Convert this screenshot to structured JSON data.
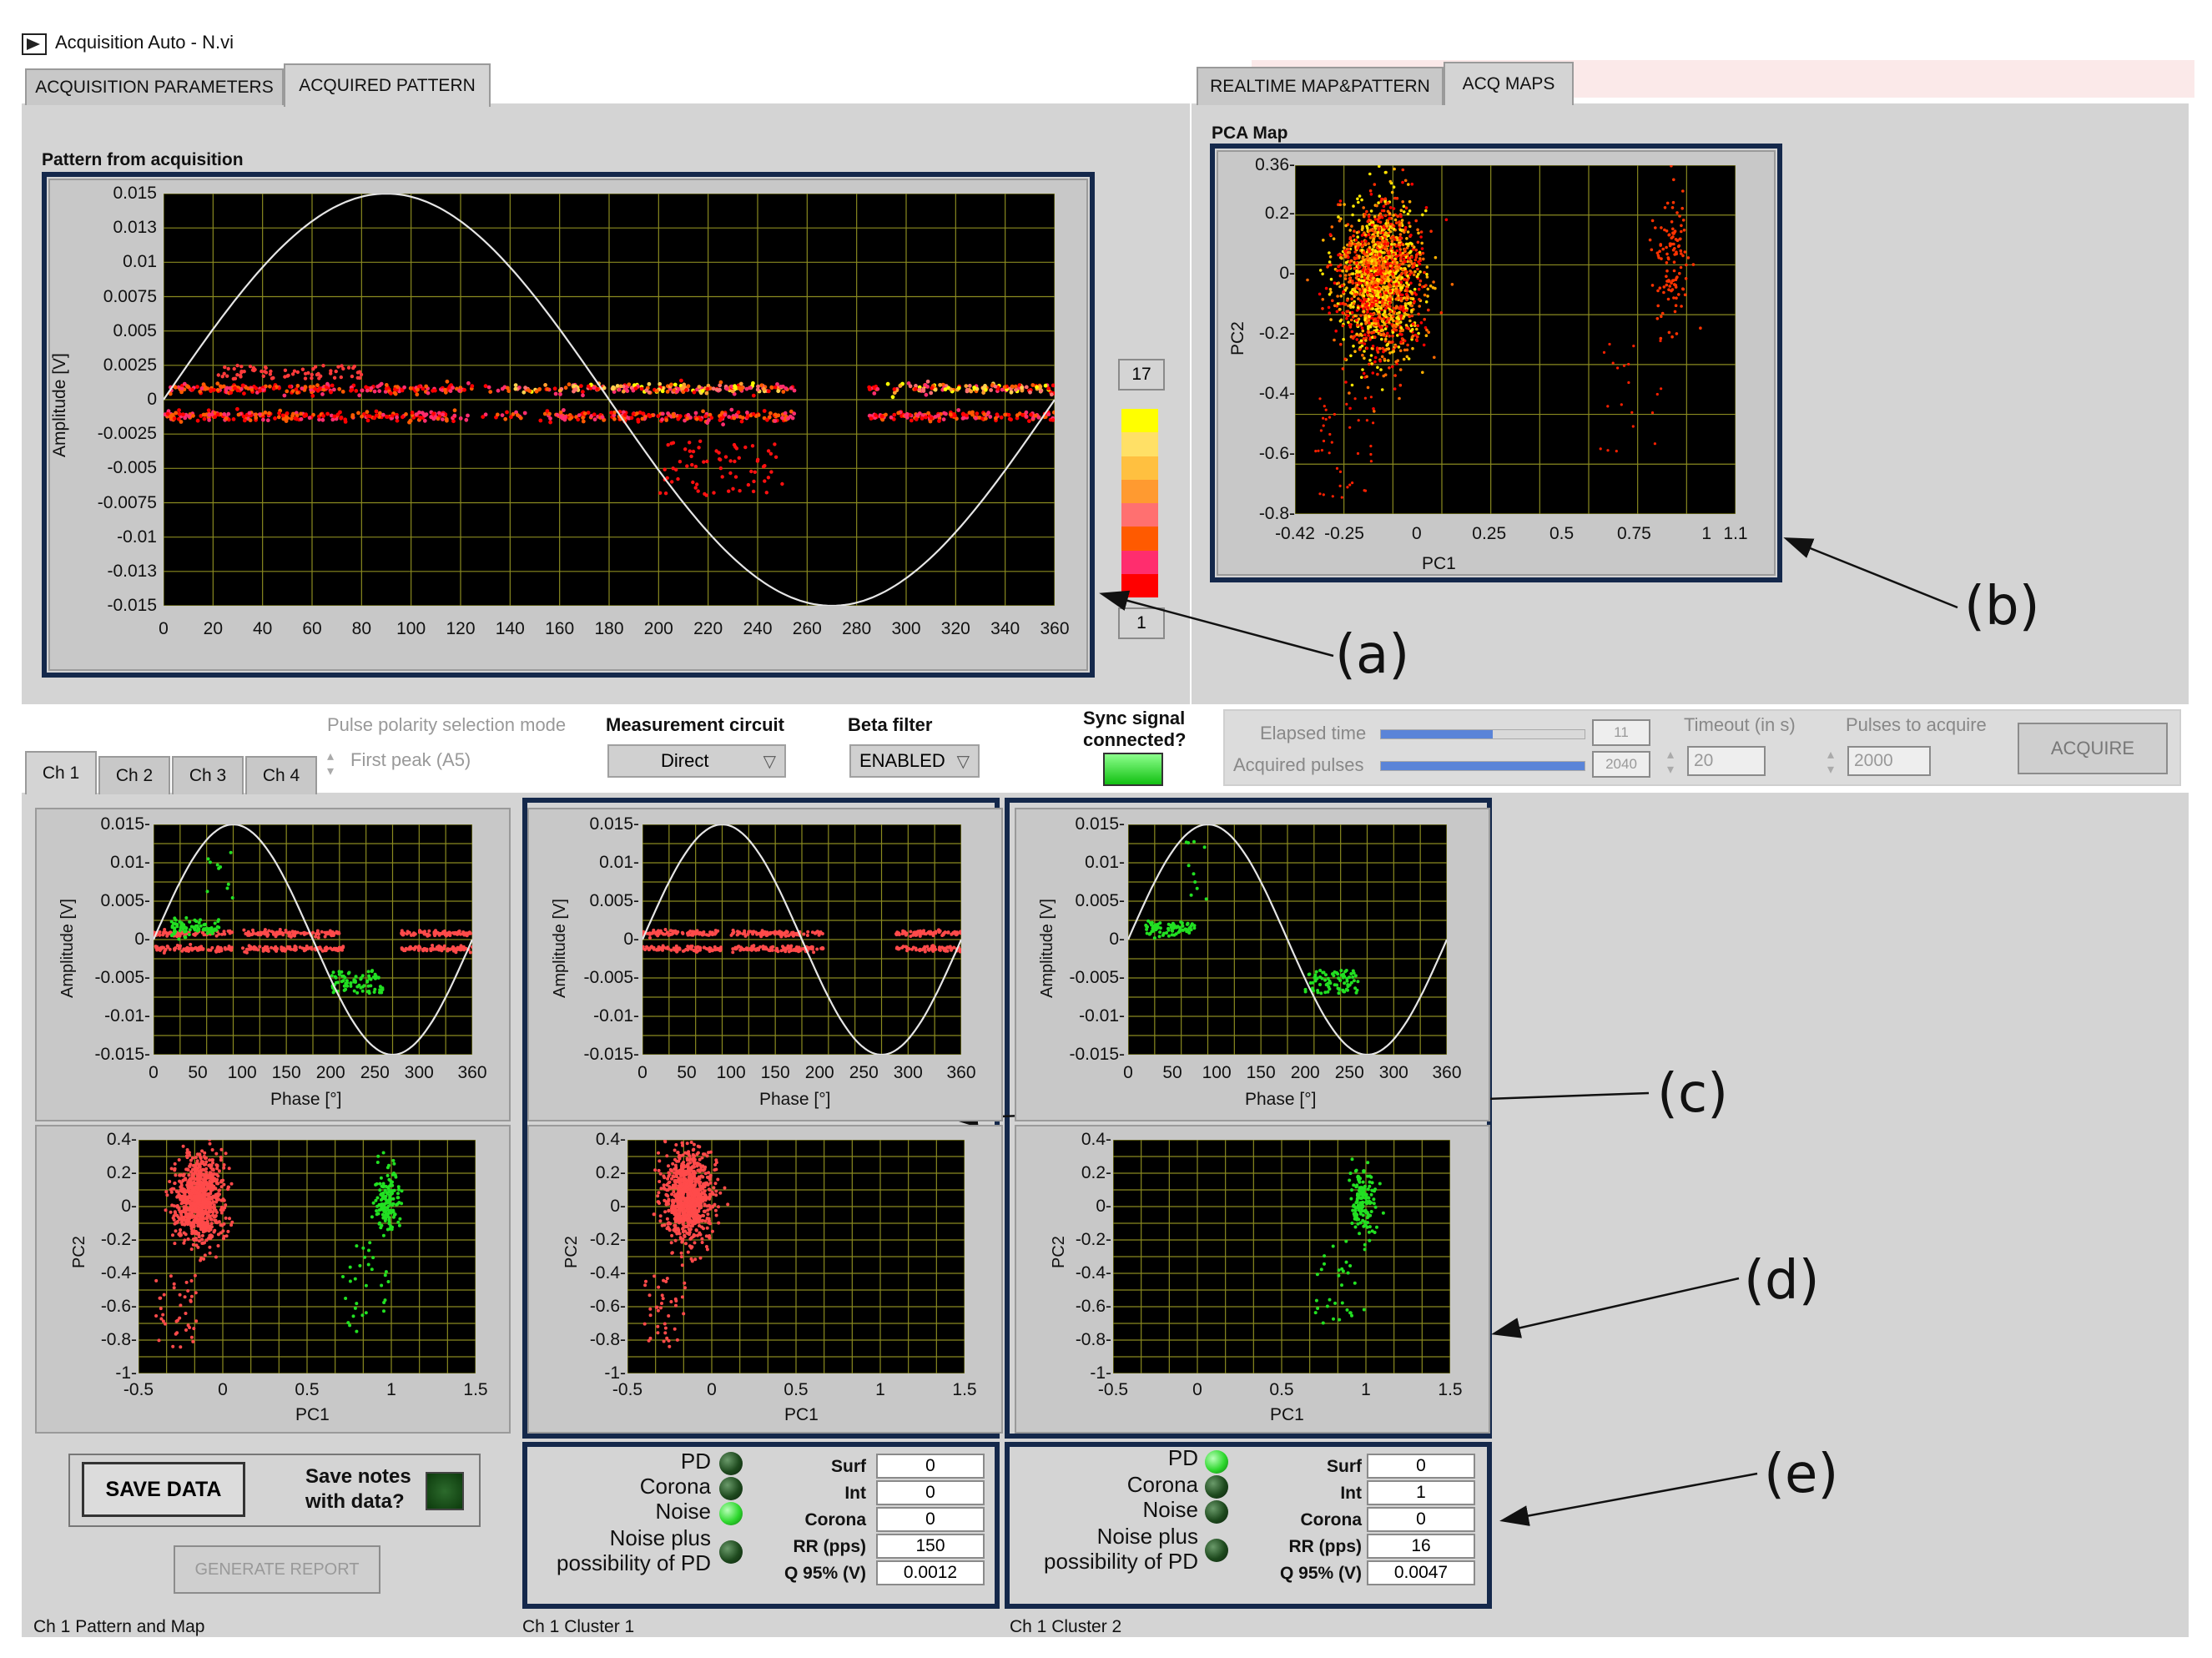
{
  "window": {
    "title": "Acquisition Auto - N.vi"
  },
  "left_tabs": [
    "ACQUISITION PARAMETERS",
    "ACQUIRED PATTERN"
  ],
  "right_tabs": [
    "REALTIME MAP&PATTERN",
    "ACQ MAPS"
  ],
  "pattern": {
    "title": "Pattern from acquisition",
    "ylabel": "Amplitude [V]",
    "yticks": [
      "0.015",
      "0.013",
      "0.01",
      "0.0075",
      "0.005",
      "0.0025",
      "0",
      "-0.0025",
      "-0.005",
      "-0.0075",
      "-0.01",
      "-0.013",
      "-0.015"
    ],
    "xticks": [
      "0",
      "20",
      "40",
      "60",
      "80",
      "100",
      "120",
      "140",
      "160",
      "180",
      "200",
      "220",
      "240",
      "260",
      "280",
      "300",
      "320",
      "340",
      "360"
    ],
    "colorbar_max": "17",
    "colorbar_min": "1",
    "colorbar_colors": [
      "#ffff00",
      "#ffe066",
      "#ffc040",
      "#ff9a30",
      "#ff7070",
      "#ff5a00",
      "#ff2d6e",
      "#ff0000"
    ]
  },
  "pca": {
    "title": "PCA Map",
    "xlabel": "PC1",
    "ylabel": "PC2",
    "yticks": [
      "0.36",
      "0.2",
      "0",
      "-0.2",
      "-0.4",
      "-0.6",
      "-0.8"
    ],
    "xticks": [
      "-0.42",
      "-0.25",
      "0",
      "0.25",
      "0.5",
      "0.75",
      "1",
      "1.1"
    ]
  },
  "annotations": {
    "a": "(a)",
    "b": "(b)",
    "c": "(c)",
    "d": "(d)",
    "e": "(e)"
  },
  "controls": {
    "pulse_polarity_label": "Pulse polarity selection mode",
    "pulse_polarity_value": "First peak (A5)",
    "measurement_circuit_label": "Measurement circuit",
    "measurement_circuit_value": "Direct",
    "beta_filter_label": "Beta filter",
    "beta_filter_value": "ENABLED",
    "sync_label_line1": "Sync signal",
    "sync_label_line2": "connected?",
    "elapsed_time_label": "Elapsed time",
    "elapsed_time_value": "11",
    "elapsed_time_fraction": 0.55,
    "acquired_pulses_label": "Acquired pulses",
    "acquired_pulses_value": "2040",
    "acquired_pulses_fraction": 1.0,
    "timeout_label": "Timeout (in s)",
    "timeout_value": "20",
    "pulses_to_acquire_label": "Pulses to acquire",
    "pulses_to_acquire_value": "2000",
    "acquire_button": "ACQUIRE"
  },
  "channel_tabs": [
    "Ch 1",
    "Ch 2",
    "Ch 3",
    "Ch 4"
  ],
  "small_pattern": {
    "yticks": [
      "0.015",
      "0.01",
      "0.005",
      "0",
      "-0.005",
      "-0.01",
      "-0.015"
    ],
    "xticks": [
      "0",
      "50",
      "100",
      "150",
      "200",
      "250",
      "300",
      "360"
    ],
    "ylabel": "Amplitude [V]",
    "xlabel": "Phase [°]"
  },
  "small_pca": {
    "yticks": [
      "0.4",
      "0.2",
      "0",
      "-0.2",
      "-0.4",
      "-0.6",
      "-0.8",
      "-1"
    ],
    "xticks": [
      "-0.5",
      "0",
      "0.5",
      "1",
      "1.5"
    ],
    "ylabel": "PC2",
    "xlabel": "PC1"
  },
  "bottom": {
    "save_data": "SAVE DATA",
    "save_notes_line1": "Save notes",
    "save_notes_line2": "with data?",
    "generate_report": "GENERATE REPORT",
    "caption_pattern": "Ch 1 Pattern and Map",
    "caption_cluster1": "Ch 1 Cluster 1",
    "caption_cluster2": "Ch 1 Cluster 2"
  },
  "cluster_labels": {
    "pd": "PD",
    "corona": "Corona",
    "noise": "Noise",
    "noise_plus_1": "Noise plus",
    "noise_plus_2": "possibility of PD",
    "surf": "Surf",
    "int": "Int",
    "corona_field": "Corona",
    "rr": "RR (pps)",
    "q95": "Q 95% (V)"
  },
  "cluster1": {
    "surf": "0",
    "int": "0",
    "corona": "0",
    "rr": "150",
    "q95": "0.0012"
  },
  "cluster2": {
    "surf": "0",
    "int": "1",
    "corona": "0",
    "rr": "16",
    "q95": "0.0047"
  }
}
